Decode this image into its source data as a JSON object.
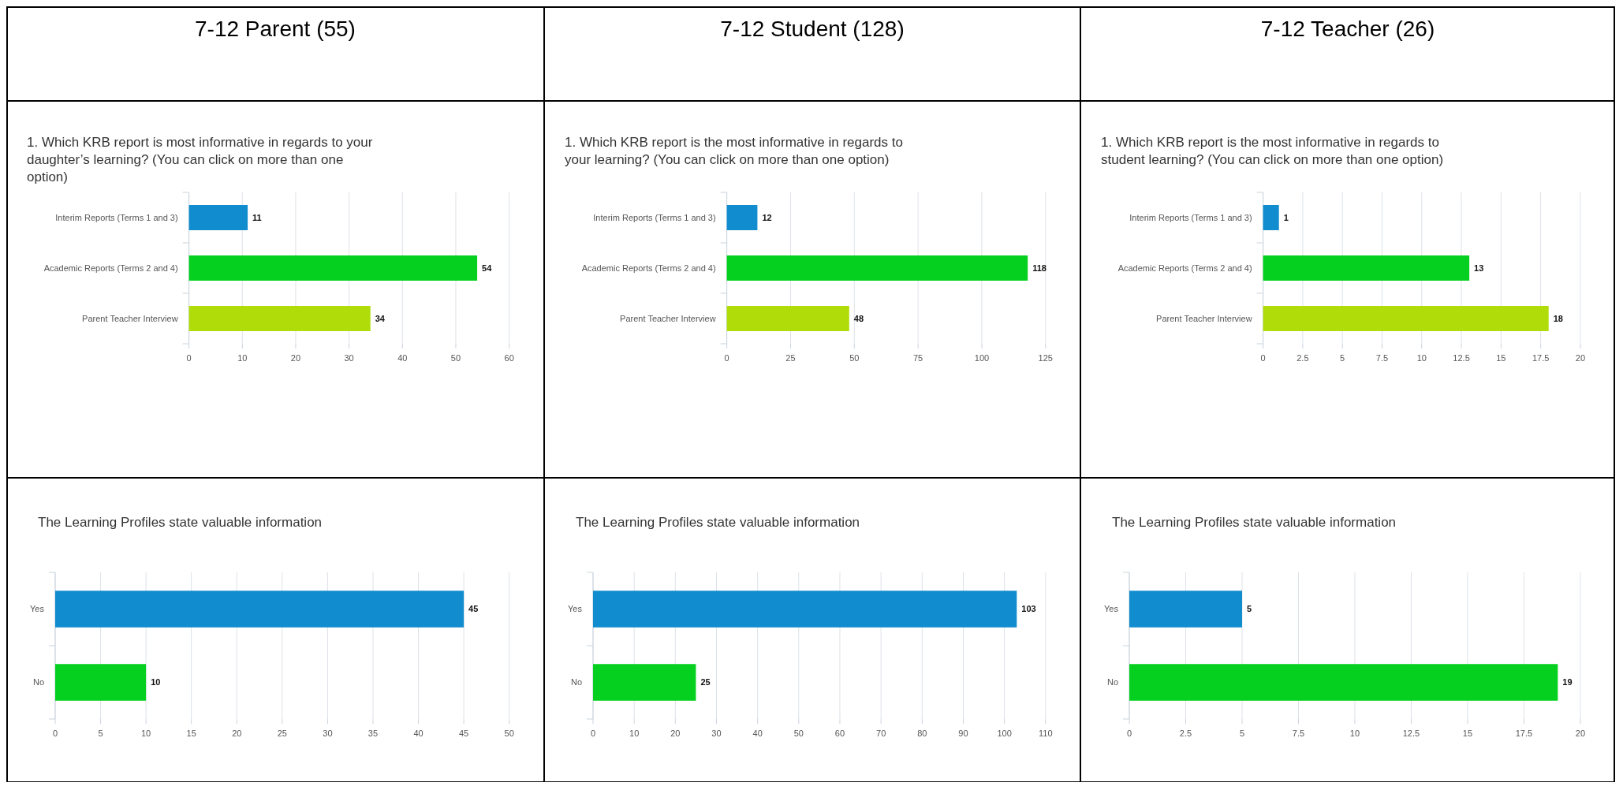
{
  "chart_data": [
    {
      "type": "bar",
      "orientation": "horizontal",
      "title": "7-12 Parent (55)",
      "subtitle": "1. Which KRB report is most informative in regards to your daughter’s learning? (You can click on more than one option)",
      "categories": [
        "Interim Reports (Terms 1 and 3)",
        "Academic Reports (Terms 2 and 4)",
        "Parent Teacher Interview"
      ],
      "values": [
        11,
        54,
        34
      ],
      "colors": [
        "#118ccf",
        "#06d01f",
        "#b0dd0a"
      ],
      "xlim": [
        0,
        60
      ],
      "xticks": [
        0,
        10,
        20,
        30,
        40,
        50,
        60
      ],
      "grid": "x",
      "data_labels": true
    },
    {
      "type": "bar",
      "orientation": "horizontal",
      "title": "7-12 Student (128)",
      "subtitle": "1. Which KRB report is the most informative in regards to your learning? (You can click on more than one option)",
      "categories": [
        "Interim Reports (Terms 1 and 3)",
        "Academic Reports (Terms 2 and 4)",
        "Parent Teacher Interview"
      ],
      "values": [
        12,
        118,
        48
      ],
      "colors": [
        "#118ccf",
        "#06d01f",
        "#b0dd0a"
      ],
      "xlim": [
        0,
        125
      ],
      "xticks": [
        0,
        25,
        50,
        75,
        100,
        125
      ],
      "grid": "x",
      "data_labels": true
    },
    {
      "type": "bar",
      "orientation": "horizontal",
      "title": "7-12 Teacher (26)",
      "subtitle": "1. Which KRB report is the most informative in regards to student learning? (You can click on more than one option)",
      "categories": [
        "Interim Reports (Terms 1 and 3)",
        "Academic Reports (Terms 2 and 4)",
        "Parent Teacher Interview"
      ],
      "values": [
        1,
        13,
        18
      ],
      "colors": [
        "#118ccf",
        "#06d01f",
        "#b0dd0a"
      ],
      "xlim": [
        0,
        20
      ],
      "xticks": [
        0,
        2.5,
        5,
        7.5,
        10,
        12.5,
        15,
        17.5,
        20
      ],
      "grid": "x",
      "data_labels": true
    },
    {
      "type": "bar",
      "orientation": "horizontal",
      "title": "The Learning Profiles state valuable information",
      "categories": [
        "Yes",
        "No"
      ],
      "values": [
        45,
        10
      ],
      "colors": [
        "#118ccf",
        "#06d01f"
      ],
      "xlim": [
        0,
        50
      ],
      "xticks": [
        0,
        5,
        10,
        15,
        20,
        25,
        30,
        35,
        40,
        45,
        50
      ],
      "grid": "x",
      "data_labels": true
    },
    {
      "type": "bar",
      "orientation": "horizontal",
      "title": "The Learning Profiles state valuable information",
      "categories": [
        "Yes",
        "No"
      ],
      "values": [
        103,
        25
      ],
      "colors": [
        "#118ccf",
        "#06d01f"
      ],
      "xlim": [
        0,
        110
      ],
      "xticks": [
        0,
        10,
        20,
        30,
        40,
        50,
        60,
        70,
        80,
        90,
        100,
        110
      ],
      "grid": "x",
      "data_labels": true
    },
    {
      "type": "bar",
      "orientation": "horizontal",
      "title": "The Learning Profiles state valuable information",
      "categories": [
        "Yes",
        "No"
      ],
      "values": [
        5,
        19
      ],
      "colors": [
        "#118ccf",
        "#06d01f"
      ],
      "xlim": [
        0,
        20
      ],
      "xticks": [
        0,
        2.5,
        5,
        7.5,
        10,
        12.5,
        15,
        17.5,
        20
      ],
      "grid": "x",
      "data_labels": true
    }
  ]
}
